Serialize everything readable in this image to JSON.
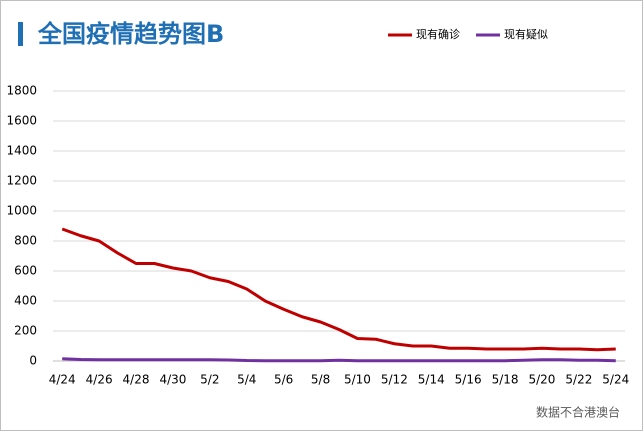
{
  "chart_data": {
    "type": "line",
    "title": "全国疫情趋势图B",
    "source": "数据不合港澳台",
    "categories": [
      "4/24",
      null,
      "4/26",
      null,
      "4/28",
      null,
      "4/30",
      null,
      "5/2",
      null,
      "5/4",
      null,
      "5/6",
      null,
      "5/8",
      null,
      "5/10",
      null,
      "5/12",
      null,
      "5/14",
      null,
      "5/16",
      null,
      "5/18",
      null,
      "5/20",
      null,
      "5/22",
      null,
      "5/24"
    ],
    "series": [
      {
        "name": "现有确诊",
        "color": "#c00000",
        "values": [
          880,
          835,
          800,
          720,
          650,
          650,
          620,
          600,
          555,
          530,
          480,
          400,
          345,
          295,
          260,
          210,
          150,
          145,
          115,
          100,
          100,
          85,
          85,
          80,
          80,
          80,
          85,
          80,
          80,
          75,
          80
        ]
      },
      {
        "name": "现有疑似",
        "color": "#7030a0",
        "values": [
          15,
          10,
          8,
          8,
          8,
          8,
          8,
          8,
          8,
          7,
          3,
          2,
          2,
          2,
          2,
          5,
          2,
          2,
          2,
          2,
          2,
          2,
          2,
          2,
          2,
          5,
          8,
          8,
          5,
          5,
          2
        ]
      }
    ],
    "ylim": [
      0,
      1800
    ],
    "yticks": [
      0,
      200,
      400,
      600,
      800,
      1000,
      1200,
      1400,
      1600,
      1800
    ],
    "grid": true
  }
}
